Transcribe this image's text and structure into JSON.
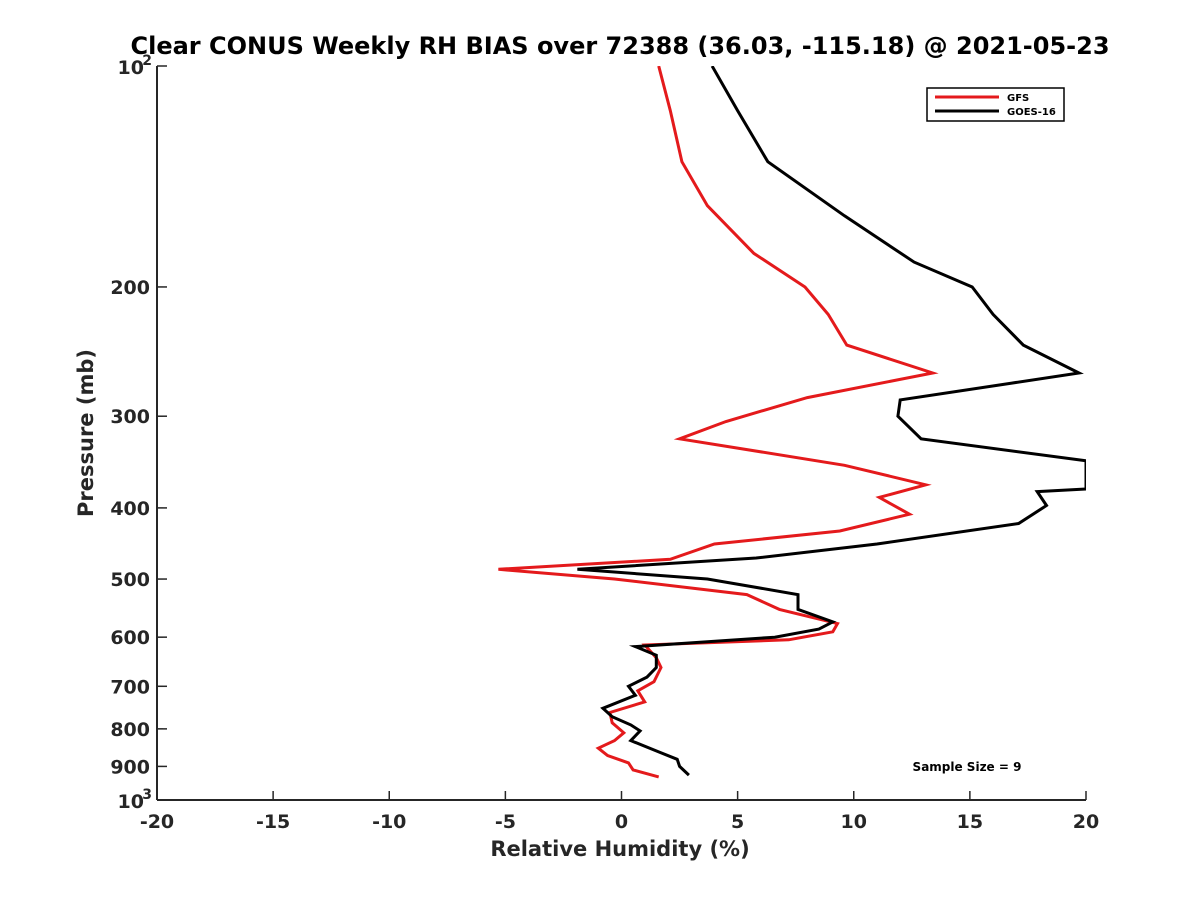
{
  "chart_data": {
    "type": "line",
    "title": "Clear CONUS Weekly RH BIAS over 72388 (36.03, -115.18) @ 2021-05-23",
    "xlabel": "Relative Humidity (%)",
    "ylabel": "Pressure (mb)",
    "xlim": [
      -20,
      20
    ],
    "ylim": [
      100,
      1000
    ],
    "y_scale": "log",
    "y_reversed": true,
    "grid": false,
    "legend_position": "top-right",
    "x_ticks": [
      "-20",
      "-15",
      "-10",
      "-5",
      "0",
      "5",
      "10",
      "15",
      "20"
    ],
    "y_ticks": [
      {
        "value": 200,
        "label": "200"
      },
      {
        "value": 300,
        "label": "300"
      },
      {
        "value": 400,
        "label": "400"
      },
      {
        "value": 500,
        "label": "500"
      },
      {
        "value": 600,
        "label": "600"
      },
      {
        "value": 700,
        "label": "700"
      },
      {
        "value": 800,
        "label": "800"
      },
      {
        "value": 900,
        "label": "900"
      }
    ],
    "y_tick_power_labels": [
      {
        "value": 100,
        "base": "10",
        "exp": "2"
      },
      {
        "value": 1000,
        "base": "10",
        "exp": "3"
      }
    ],
    "annotation": "Sample Size = 9",
    "series": [
      {
        "name": "GFS",
        "color": "#e41a1c",
        "points": [
          [
            1.6,
            100
          ],
          [
            2.1,
            115
          ],
          [
            2.6,
            135
          ],
          [
            3.7,
            155
          ],
          [
            5.7,
            180
          ],
          [
            7.9,
            200
          ],
          [
            8.9,
            218
          ],
          [
            9.7,
            240
          ],
          [
            13.4,
            262
          ],
          [
            8.0,
            283
          ],
          [
            4.5,
            305
          ],
          [
            2.5,
            322
          ],
          [
            9.6,
            350
          ],
          [
            13.1,
            372
          ],
          [
            11.1,
            387
          ],
          [
            12.4,
            408
          ],
          [
            9.4,
            430
          ],
          [
            4.0,
            448
          ],
          [
            2.1,
            470
          ],
          [
            -5.3,
            485
          ],
          [
            -0.3,
            500
          ],
          [
            5.4,
            525
          ],
          [
            6.8,
            550
          ],
          [
            9.3,
            575
          ],
          [
            9.1,
            590
          ],
          [
            7.2,
            605
          ],
          [
            1.0,
            615
          ],
          [
            1.5,
            640
          ],
          [
            1.7,
            660
          ],
          [
            1.4,
            690
          ],
          [
            0.7,
            710
          ],
          [
            1.0,
            735
          ],
          [
            -0.5,
            760
          ],
          [
            -0.4,
            785
          ],
          [
            0.1,
            810
          ],
          [
            -0.3,
            830
          ],
          [
            -1.0,
            850
          ],
          [
            -0.6,
            870
          ],
          [
            0.3,
            890
          ],
          [
            0.5,
            910
          ],
          [
            1.6,
            930
          ]
        ]
      },
      {
        "name": "GOES-16",
        "color": "#000000",
        "points": [
          [
            3.9,
            100
          ],
          [
            5.0,
            115
          ],
          [
            6.3,
            135
          ],
          [
            9.6,
            160
          ],
          [
            12.6,
            185
          ],
          [
            15.1,
            200
          ],
          [
            16.0,
            218
          ],
          [
            17.3,
            240
          ],
          [
            19.7,
            262
          ],
          [
            12.0,
            285
          ],
          [
            11.9,
            300
          ],
          [
            12.9,
            322
          ],
          [
            20.0,
            345
          ],
          [
            20.0,
            377
          ],
          [
            17.9,
            380
          ],
          [
            18.3,
            397
          ],
          [
            17.1,
            420
          ],
          [
            11.0,
            448
          ],
          [
            5.8,
            468
          ],
          [
            -1.9,
            485
          ],
          [
            3.7,
            500
          ],
          [
            7.6,
            525
          ],
          [
            7.6,
            550
          ],
          [
            9.1,
            572
          ],
          [
            8.5,
            585
          ],
          [
            6.6,
            600
          ],
          [
            0.6,
            618
          ],
          [
            1.5,
            635
          ],
          [
            1.5,
            660
          ],
          [
            1.1,
            680
          ],
          [
            0.3,
            700
          ],
          [
            0.6,
            720
          ],
          [
            -0.8,
            750
          ],
          [
            -0.4,
            770
          ],
          [
            0.4,
            790
          ],
          [
            0.8,
            805
          ],
          [
            0.4,
            830
          ],
          [
            1.6,
            860
          ],
          [
            2.4,
            880
          ],
          [
            2.5,
            900
          ],
          [
            2.9,
            925
          ]
        ]
      }
    ]
  }
}
